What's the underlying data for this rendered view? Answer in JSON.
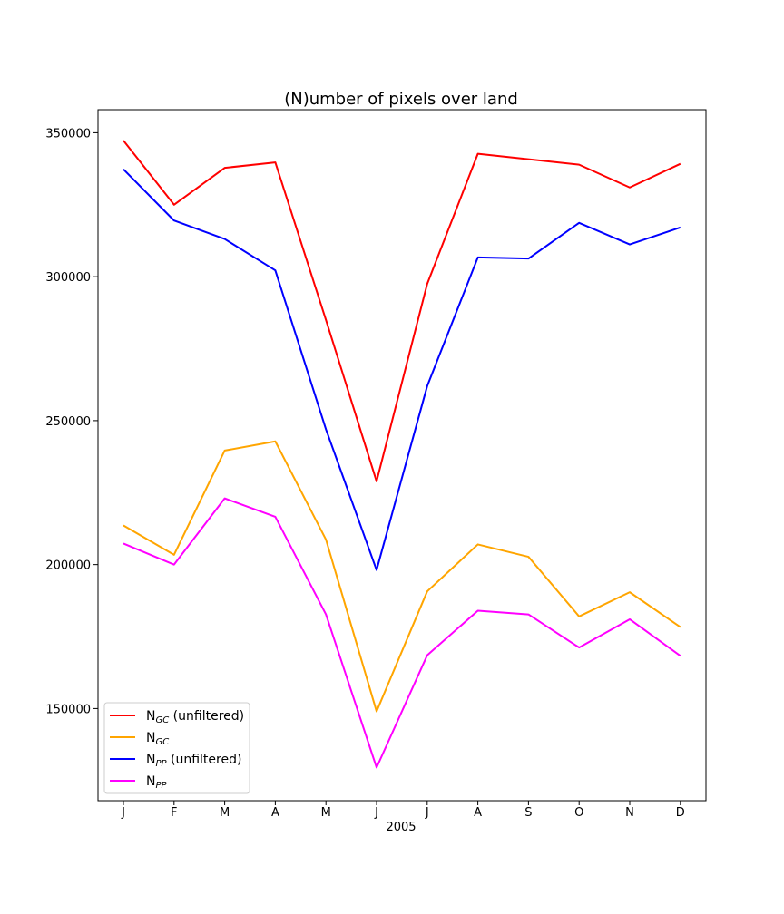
{
  "chart_data": {
    "type": "line",
    "title": "(N)umber of pixels over land",
    "xlabel": "2005",
    "ylabel": "",
    "categories": [
      "J",
      "F",
      "M",
      "A",
      "M",
      "J",
      "J",
      "A",
      "S",
      "O",
      "N",
      "D"
    ],
    "ylim": [
      118000,
      358000
    ],
    "yticks": [
      150000,
      200000,
      250000,
      300000,
      350000
    ],
    "ytick_labels": [
      "150000",
      "200000",
      "250000",
      "300000",
      "350000"
    ],
    "grid": false,
    "legend_position": "lower-left",
    "series": [
      {
        "name": "N_GC (unfiltered)",
        "legend_base": "N",
        "legend_sub": "GC",
        "legend_suffix": " (unfiltered)",
        "color": "#ff0000",
        "values": [
          347300,
          325000,
          337800,
          339700,
          285000,
          228900,
          297500,
          342700,
          340800,
          338900,
          331000,
          339200
        ]
      },
      {
        "name": "N_GC",
        "legend_base": "N",
        "legend_sub": "GC",
        "legend_suffix": "",
        "color": "#ffa500",
        "values": [
          213600,
          203400,
          239600,
          242800,
          208700,
          149000,
          190700,
          207000,
          202700,
          182000,
          190400,
          178300
        ]
      },
      {
        "name": "N_PP (unfiltered)",
        "legend_base": "N",
        "legend_sub": "PP",
        "legend_suffix": " (unfiltered)",
        "color": "#0000ff",
        "values": [
          337300,
          319500,
          313100,
          302200,
          247000,
          198100,
          262000,
          306700,
          306300,
          318700,
          311200,
          317100
        ]
      },
      {
        "name": "N_PP",
        "legend_base": "N",
        "legend_sub": "PP",
        "legend_suffix": "",
        "color": "#ff00ff",
        "values": [
          207300,
          200000,
          223000,
          216600,
          182700,
          129500,
          168500,
          184000,
          182700,
          171200,
          181000,
          168300
        ]
      }
    ]
  }
}
